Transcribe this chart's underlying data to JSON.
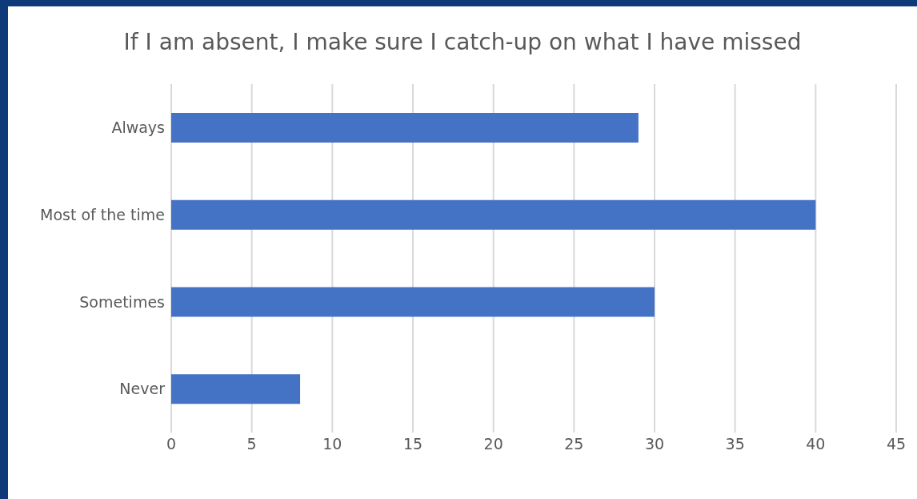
{
  "chart_data": {
    "type": "bar",
    "orientation": "horizontal",
    "title": "If I am absent, I make sure I catch-up on what I have missed",
    "categories": [
      "Always",
      "Most of the time",
      "Sometimes",
      "Never"
    ],
    "values": [
      29,
      40,
      30,
      8
    ],
    "color": "#4472c4",
    "xlim": [
      0,
      45
    ],
    "xticks": [
      0,
      5,
      10,
      15,
      20,
      25,
      30,
      35,
      40,
      45
    ],
    "grid": "x"
  }
}
